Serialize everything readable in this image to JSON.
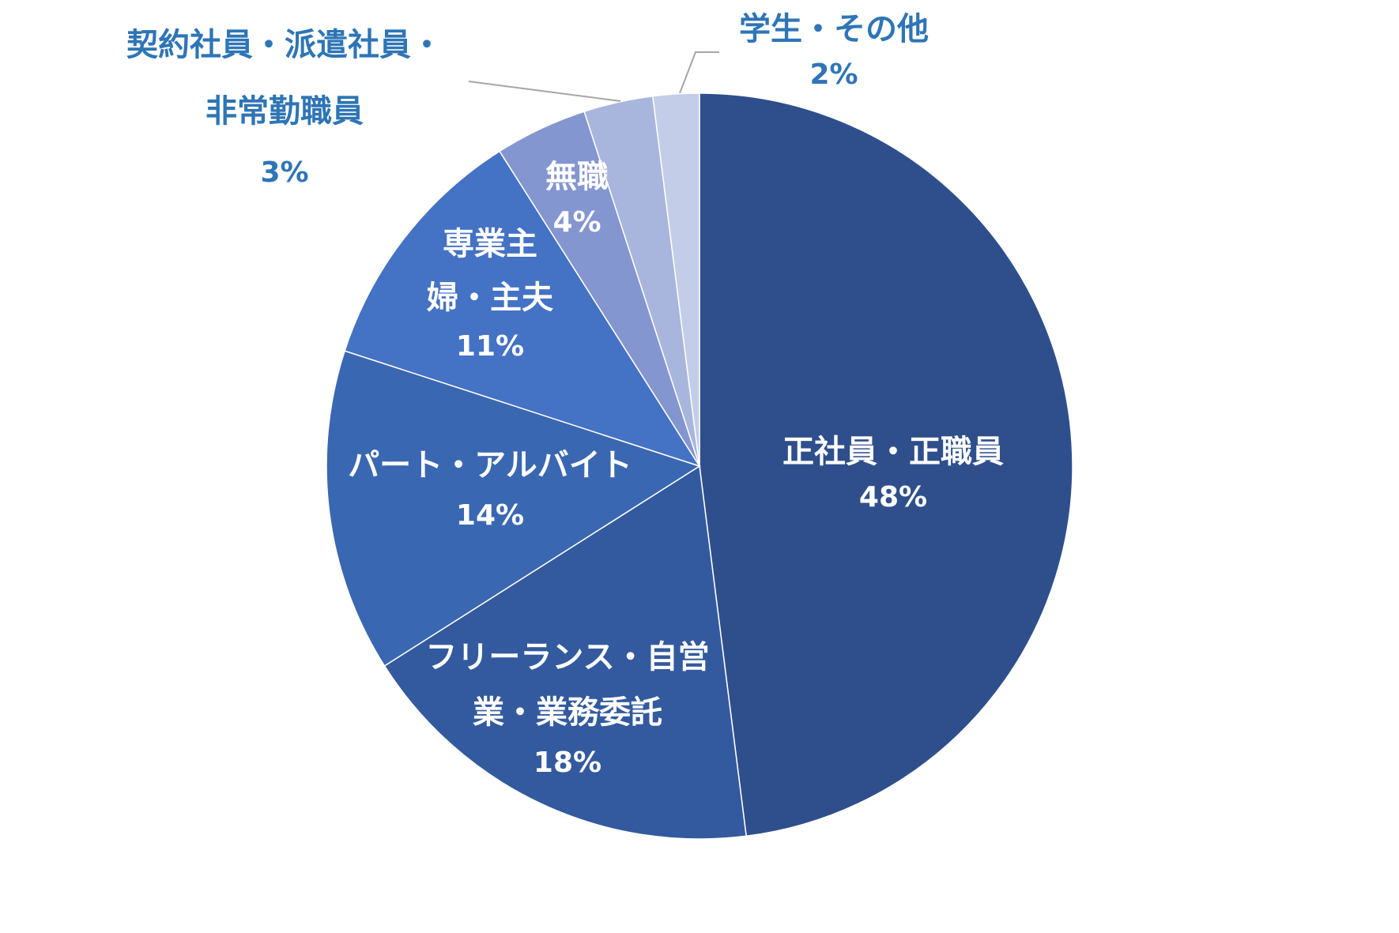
{
  "chart_data": {
    "type": "pie",
    "start_angle_deg": 0,
    "direction": "clockwise",
    "slices": [
      {
        "label_lines": [
          "正社員・正職員"
        ],
        "value": 48,
        "value_label": "48%",
        "color": "#2F4F8C",
        "text_color": "#FFFFFF"
      },
      {
        "label_lines": [
          "フリーランス・自営",
          "業・業務委託"
        ],
        "value": 18,
        "value_label": "18%",
        "color": "#335A9E",
        "text_color": "#FFFFFF"
      },
      {
        "label_lines": [
          "パート・アルバイト"
        ],
        "value": 14,
        "value_label": "14%",
        "color": "#3A67B1",
        "text_color": "#FFFFFF"
      },
      {
        "label_lines": [
          "専業主",
          "婦・主夫"
        ],
        "value": 11,
        "value_label": "11%",
        "color": "#4472C4",
        "text_color": "#FFFFFF"
      },
      {
        "label_lines": [
          "無職"
        ],
        "value": 4,
        "value_label": "4%",
        "color": "#8496D0",
        "text_color": "#FFFFFF"
      },
      {
        "label_lines": [
          "契約社員・派遣社員・",
          "非常勤職員"
        ],
        "value": 3,
        "value_label": "3%",
        "color": "#A8B6DE",
        "text_color": "#2E75B6"
      },
      {
        "label_lines": [
          "学生・その他"
        ],
        "value": 2,
        "value_label": "2%",
        "color": "#C3CDE8",
        "text_color": "#2E75B6"
      }
    ],
    "legend": "none",
    "leader_line_color": "#A6A6A6"
  }
}
